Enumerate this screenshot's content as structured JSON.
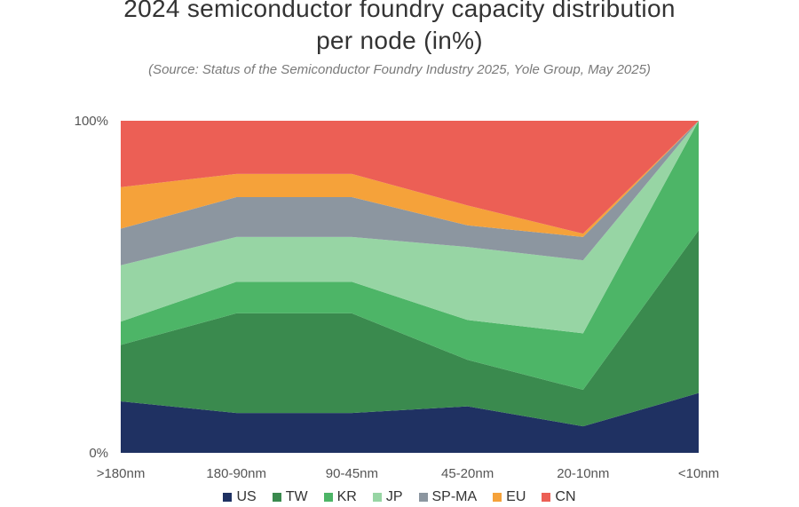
{
  "chart_data": {
    "type": "area",
    "stacked": true,
    "percent": true,
    "title_line1": "2024 semiconductor foundry capacity distribution",
    "title_line2": "per node (in%)",
    "subtitle": "(Source: Status of the Semiconductor Foundry Industry 2025, Yole Group, May 2025)",
    "categories": [
      ">180nm",
      "180-90nm",
      "90-45nm",
      "45-20nm",
      "20-10nm",
      "<10nm"
    ],
    "y_tick_labels": [
      "0%",
      "100%"
    ],
    "ylim": [
      0,
      100
    ],
    "legend_position": "bottom",
    "series": [
      {
        "name": "US",
        "color": "#1f3162",
        "values": [
          15.5,
          12,
          12,
          14,
          8,
          18
        ]
      },
      {
        "name": "TW",
        "color": "#3a8a4e",
        "values": [
          17,
          30,
          30,
          14,
          11,
          49
        ]
      },
      {
        "name": "KR",
        "color": "#4db567",
        "values": [
          7,
          9.5,
          9.5,
          12,
          17,
          33
        ]
      },
      {
        "name": "JP",
        "color": "#97d5a4",
        "values": [
          17,
          13.5,
          13.5,
          22,
          22,
          0
        ]
      },
      {
        "name": "SP-MA",
        "color": "#8c96a0",
        "values": [
          11,
          12,
          12,
          6.5,
          7,
          0
        ]
      },
      {
        "name": "EU",
        "color": "#f5a23a",
        "values": [
          12.5,
          7,
          7,
          6,
          1,
          0
        ]
      },
      {
        "name": "CN",
        "color": "#ec5f55",
        "values": [
          20,
          16,
          16,
          25.5,
          34,
          0
        ]
      }
    ]
  }
}
